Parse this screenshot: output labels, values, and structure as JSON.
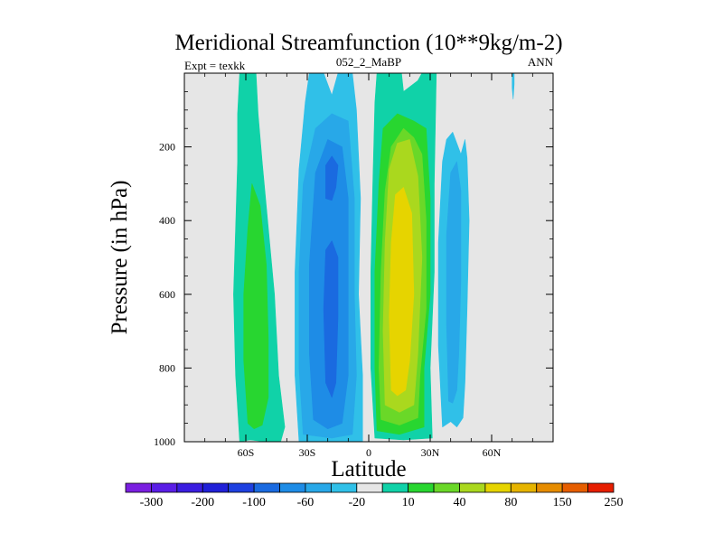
{
  "chart_data": {
    "type": "contour",
    "title": "Meridional Streamfunction (10**9kg/m-2)",
    "subtitle_left": "Expt = texkk",
    "subtitle_center": "052_2_MaBP",
    "subtitle_right": "ANN",
    "xlabel": "Latitude",
    "ylabel": "Pressure (in hPa)",
    "xlim": [
      -90,
      90
    ],
    "ylim": [
      1000,
      0
    ],
    "x_ticks": [
      {
        "value": -60,
        "label": "60S"
      },
      {
        "value": -30,
        "label": "30S"
      },
      {
        "value": 0,
        "label": "0"
      },
      {
        "value": 30,
        "label": "30N"
      },
      {
        "value": 60,
        "label": "60N"
      }
    ],
    "y_ticks": [
      {
        "value": 200,
        "label": "200"
      },
      {
        "value": 400,
        "label": "400"
      },
      {
        "value": 600,
        "label": "600"
      },
      {
        "value": 800,
        "label": "800"
      },
      {
        "value": 1000,
        "label": "1000"
      }
    ],
    "colorbar": {
      "colors": [
        "#7a1fe0",
        "#5a1ee6",
        "#3a1de0",
        "#2020d8",
        "#1e40e0",
        "#1a6ae0",
        "#1e8ce6",
        "#28a8e8",
        "#30c0e8",
        "#e6e6e6",
        "#10d2a8",
        "#28d630",
        "#6ad828",
        "#aad81e",
        "#e6d400",
        "#e6b400",
        "#e68c00",
        "#e65e00",
        "#e61e00"
      ],
      "labels": [
        {
          "boundary": 1,
          "label": "-300"
        },
        {
          "boundary": 3,
          "label": "-200"
        },
        {
          "boundary": 5,
          "label": "-100"
        },
        {
          "boundary": 7,
          "label": "-60"
        },
        {
          "boundary": 9,
          "label": "-20"
        },
        {
          "boundary": 11,
          "label": "10"
        },
        {
          "boundary": 13,
          "label": "40"
        },
        {
          "boundary": 15,
          "label": "80"
        },
        {
          "boundary": 17,
          "label": "150"
        },
        {
          "boundary": 19,
          "label": "250"
        }
      ]
    },
    "background_color": "#e6e6e6",
    "regions": [
      {
        "name": "sh-outer-cell-outer",
        "color": "#10d2a8",
        "points": [
          [
            -63,
            1000
          ],
          [
            -65,
            820
          ],
          [
            -66,
            600
          ],
          [
            -65,
            420
          ],
          [
            -64,
            240
          ],
          [
            -64,
            110
          ],
          [
            -63,
            0
          ],
          [
            -55,
            0
          ],
          [
            -54,
            110
          ],
          [
            -52,
            240
          ],
          [
            -49,
            420
          ],
          [
            -46,
            600
          ],
          [
            -44,
            820
          ],
          [
            -41,
            960
          ],
          [
            -43,
            1000
          ],
          [
            -50,
            1000
          ],
          [
            -58,
            995
          ]
        ]
      },
      {
        "name": "sh-outer-cell-core",
        "color": "#28d630",
        "points": [
          [
            -59,
            950
          ],
          [
            -61,
            780
          ],
          [
            -61,
            600
          ],
          [
            -59,
            420
          ],
          [
            -57,
            300
          ],
          [
            -53,
            360
          ],
          [
            -50,
            520
          ],
          [
            -49,
            720
          ],
          [
            -49,
            880
          ],
          [
            -52,
            955
          ],
          [
            -56,
            965
          ]
        ]
      },
      {
        "name": "sh-hadley-outer",
        "color": "#30c0e8",
        "points": [
          [
            -34,
            1000
          ],
          [
            -36,
            820
          ],
          [
            -36,
            540
          ],
          [
            -34,
            260
          ],
          [
            -31,
            80
          ],
          [
            -29,
            0
          ],
          [
            -22,
            0
          ],
          [
            -18,
            60
          ],
          [
            -15,
            0
          ],
          [
            -8,
            0
          ],
          [
            -6,
            100
          ],
          [
            -4,
            340
          ],
          [
            -5,
            600
          ],
          [
            -3,
            820
          ],
          [
            -3,
            1000
          ]
        ]
      },
      {
        "name": "sh-hadley-mid",
        "color": "#28a8e8",
        "points": [
          [
            -32,
            980
          ],
          [
            -34,
            800
          ],
          [
            -34,
            540
          ],
          [
            -32,
            300
          ],
          [
            -26,
            150
          ],
          [
            -18,
            110
          ],
          [
            -10,
            130
          ],
          [
            -7,
            340
          ],
          [
            -7,
            600
          ],
          [
            -6,
            820
          ],
          [
            -8,
            980
          ],
          [
            -18,
            990
          ]
        ]
      },
      {
        "name": "sh-hadley-inner",
        "color": "#1e8ce6",
        "points": [
          [
            -27,
            940
          ],
          [
            -29,
            760
          ],
          [
            -29,
            520
          ],
          [
            -26,
            270
          ],
          [
            -20,
            180
          ],
          [
            -13,
            200
          ],
          [
            -10,
            340
          ],
          [
            -10,
            620
          ],
          [
            -10,
            820
          ],
          [
            -13,
            950
          ],
          [
            -20,
            965
          ]
        ]
      },
      {
        "name": "sh-hadley-core-upper",
        "color": "#1a6ae0",
        "points": [
          [
            -21,
            340
          ],
          [
            -21,
            250
          ],
          [
            -18,
            225
          ],
          [
            -15,
            250
          ],
          [
            -16,
            310
          ],
          [
            -18,
            345
          ]
        ]
      },
      {
        "name": "sh-hadley-core-lower",
        "color": "#1a6ae0",
        "points": [
          [
            -21,
            840
          ],
          [
            -22,
            640
          ],
          [
            -21,
            480
          ],
          [
            -18,
            455
          ],
          [
            -15,
            500
          ],
          [
            -15,
            660
          ],
          [
            -16,
            840
          ],
          [
            -18,
            880
          ]
        ]
      },
      {
        "name": "nh-hadley-outer",
        "color": "#10d2a8",
        "points": [
          [
            3,
            990
          ],
          [
            1,
            800
          ],
          [
            1,
            540
          ],
          [
            2,
            300
          ],
          [
            3,
            80
          ],
          [
            4,
            0
          ],
          [
            16,
            0
          ],
          [
            17,
            50
          ],
          [
            24,
            20
          ],
          [
            26,
            0
          ],
          [
            33,
            0
          ],
          [
            32,
            300
          ],
          [
            32,
            540
          ],
          [
            30,
            800
          ],
          [
            31,
            990
          ],
          [
            17,
            995
          ]
        ]
      },
      {
        "name": "nh-hadley-mid",
        "color": "#28d630",
        "points": [
          [
            4,
            970
          ],
          [
            3,
            800
          ],
          [
            3,
            540
          ],
          [
            5,
            300
          ],
          [
            7,
            150
          ],
          [
            14,
            110
          ],
          [
            22,
            130
          ],
          [
            28,
            150
          ],
          [
            30,
            340
          ],
          [
            30,
            600
          ],
          [
            27,
            800
          ],
          [
            27,
            960
          ],
          [
            15,
            980
          ]
        ]
      },
      {
        "name": "nh-hadley-inner",
        "color": "#6ad828",
        "points": [
          [
            6,
            940
          ],
          [
            5,
            800
          ],
          [
            6,
            540
          ],
          [
            8,
            320
          ],
          [
            11,
            200
          ],
          [
            17,
            150
          ],
          [
            22,
            175
          ],
          [
            26,
            220
          ],
          [
            28,
            400
          ],
          [
            28,
            640
          ],
          [
            25,
            820
          ],
          [
            24,
            935
          ],
          [
            15,
            955
          ]
        ]
      },
      {
        "name": "nh-hadley-core",
        "color": "#aad81e",
        "points": [
          [
            8,
            900
          ],
          [
            7,
            700
          ],
          [
            8,
            460
          ],
          [
            10,
            260
          ],
          [
            14,
            190
          ],
          [
            20,
            180
          ],
          [
            24,
            280
          ],
          [
            26,
            500
          ],
          [
            24,
            760
          ],
          [
            22,
            900
          ],
          [
            15,
            920
          ]
        ]
      },
      {
        "name": "nh-hadley-peak",
        "color": "#e6d400",
        "points": [
          [
            11,
            860
          ],
          [
            10,
            660
          ],
          [
            11,
            460
          ],
          [
            13,
            330
          ],
          [
            17,
            310
          ],
          [
            21,
            380
          ],
          [
            22,
            600
          ],
          [
            20,
            780
          ],
          [
            18,
            860
          ],
          [
            14,
            875
          ]
        ]
      },
      {
        "name": "nh-ferrel-outer",
        "color": "#30c0e8",
        "points": [
          [
            36,
            960
          ],
          [
            34,
            740
          ],
          [
            34,
            460
          ],
          [
            36,
            240
          ],
          [
            38,
            180
          ],
          [
            41,
            160
          ],
          [
            45,
            220
          ],
          [
            47,
            180
          ],
          [
            48,
            230
          ],
          [
            49,
            400
          ],
          [
            48,
            640
          ],
          [
            47,
            840
          ],
          [
            46,
            935
          ],
          [
            43,
            960
          ],
          [
            40,
            945
          ]
        ]
      },
      {
        "name": "nh-ferrel-core",
        "color": "#28a8e8",
        "points": [
          [
            39,
            890
          ],
          [
            38,
            680
          ],
          [
            38,
            440
          ],
          [
            40,
            270
          ],
          [
            43,
            240
          ],
          [
            45,
            320
          ],
          [
            45,
            560
          ],
          [
            44,
            760
          ],
          [
            43,
            860
          ],
          [
            41,
            895
          ]
        ]
      },
      {
        "name": "polar-cell-sliver",
        "color": "#30c0e8",
        "points": [
          [
            70,
            0
          ],
          [
            71,
            0
          ],
          [
            71,
            30
          ],
          [
            70.5,
            70
          ],
          [
            70,
            40
          ]
        ]
      }
    ]
  }
}
